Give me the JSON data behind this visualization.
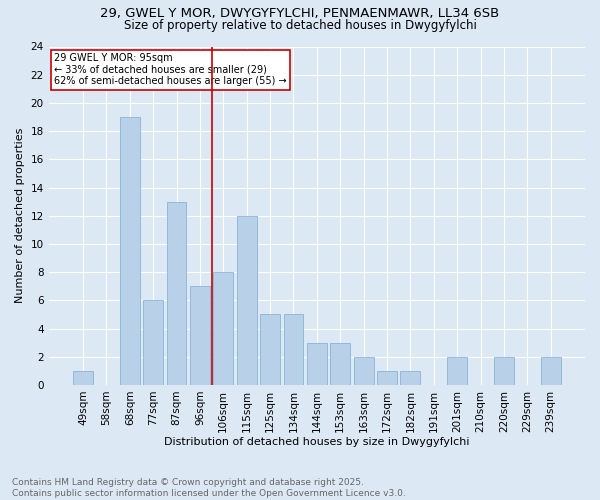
{
  "title1": "29, GWEL Y MOR, DWYGYFYLCHI, PENMAENMAWR, LL34 6SB",
  "title2": "Size of property relative to detached houses in Dwygyfylchi",
  "xlabel": "Distribution of detached houses by size in Dwygyfylchi",
  "ylabel": "Number of detached properties",
  "footnote": "Contains HM Land Registry data © Crown copyright and database right 2025.\nContains public sector information licensed under the Open Government Licence v3.0.",
  "categories": [
    "49sqm",
    "58sqm",
    "68sqm",
    "77sqm",
    "87sqm",
    "96sqm",
    "106sqm",
    "115sqm",
    "125sqm",
    "134sqm",
    "144sqm",
    "153sqm",
    "163sqm",
    "172sqm",
    "182sqm",
    "191sqm",
    "201sqm",
    "210sqm",
    "220sqm",
    "229sqm",
    "239sqm"
  ],
  "values": [
    1,
    0,
    19,
    6,
    13,
    7,
    8,
    12,
    5,
    5,
    3,
    3,
    2,
    1,
    1,
    0,
    2,
    0,
    2,
    0,
    2
  ],
  "bar_color": "#b8d0e8",
  "bar_edge_color": "#7aadd4",
  "vline_x": 5.5,
  "vline_color": "#cc0000",
  "annotation_text": "29 GWEL Y MOR: 95sqm\n← 33% of detached houses are smaller (29)\n62% of semi-detached houses are larger (55) →",
  "annotation_box_color": "#ffffff",
  "annotation_box_edge_color": "#cc0000",
  "ylim": [
    0,
    24
  ],
  "yticks": [
    0,
    2,
    4,
    6,
    8,
    10,
    12,
    14,
    16,
    18,
    20,
    22,
    24
  ],
  "bg_color": "#dce9f5",
  "plot_bg_color": "#dce9f5",
  "grid_color": "#ffffff",
  "title_fontsize": 9.5,
  "subtitle_fontsize": 8.5,
  "axis_label_fontsize": 8,
  "tick_fontsize": 7.5,
  "footnote_fontsize": 6.5
}
